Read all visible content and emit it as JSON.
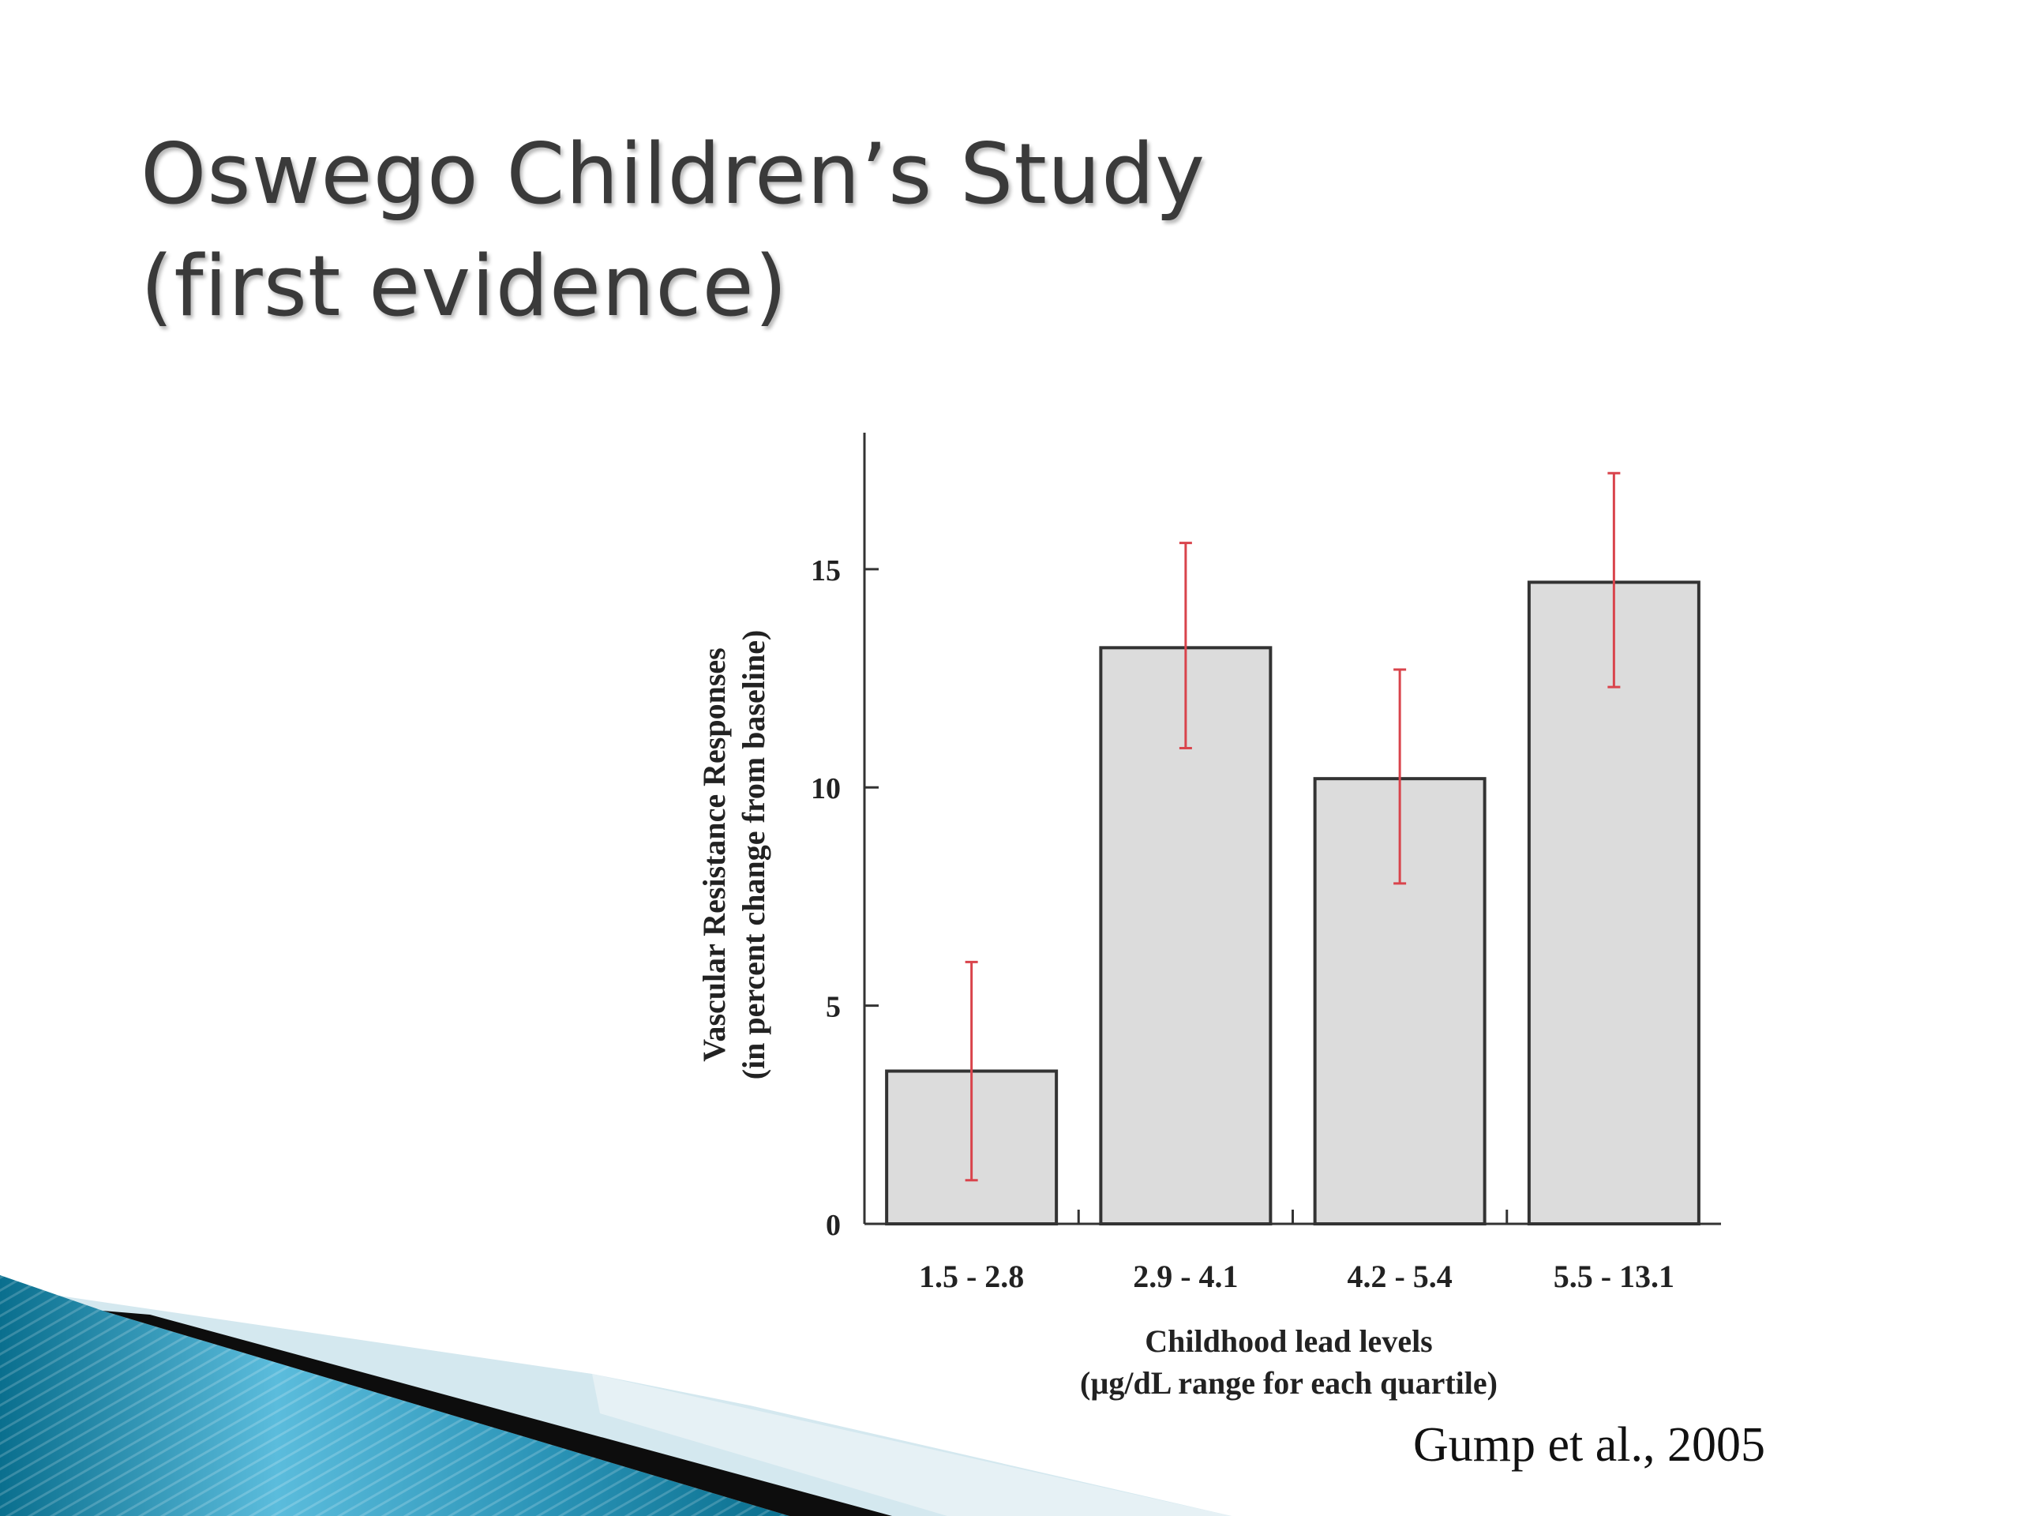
{
  "slide": {
    "title_line1": "Oswego Children’s Study",
    "title_line2": "(first evidence)",
    "citation": "Gump et al., 2005"
  },
  "colors": {
    "bar_fill": "#dcdcdc",
    "bar_stroke": "#333333",
    "error_bar": "#d9444c",
    "title_text": "#3a3a3a",
    "ribbon_dark": "#0a6f8e",
    "ribbon_light": "#5bbcdc",
    "ribbon_pale": "#d4e8ef"
  },
  "chart_data": {
    "type": "bar",
    "categories": [
      "1.5 - 2.8",
      "2.9 - 4.1",
      "4.2 - 5.4",
      "5.5 - 13.1"
    ],
    "values": [
      3.5,
      13.2,
      10.2,
      14.7
    ],
    "error_low": [
      1.0,
      10.9,
      7.8,
      12.3
    ],
    "error_high": [
      6.0,
      15.6,
      12.7,
      17.2
    ],
    "ylabel_line1": "Vascular Resistance Responses",
    "ylabel_line2": "(in percent change from baseline)",
    "xlabel_line1": "Childhood lead levels",
    "xlabel_line2": "(µg/dL range for each quartile)",
    "ylim": [
      0,
      18
    ],
    "yticks": [
      0,
      5,
      10,
      15
    ],
    "grid": false
  }
}
